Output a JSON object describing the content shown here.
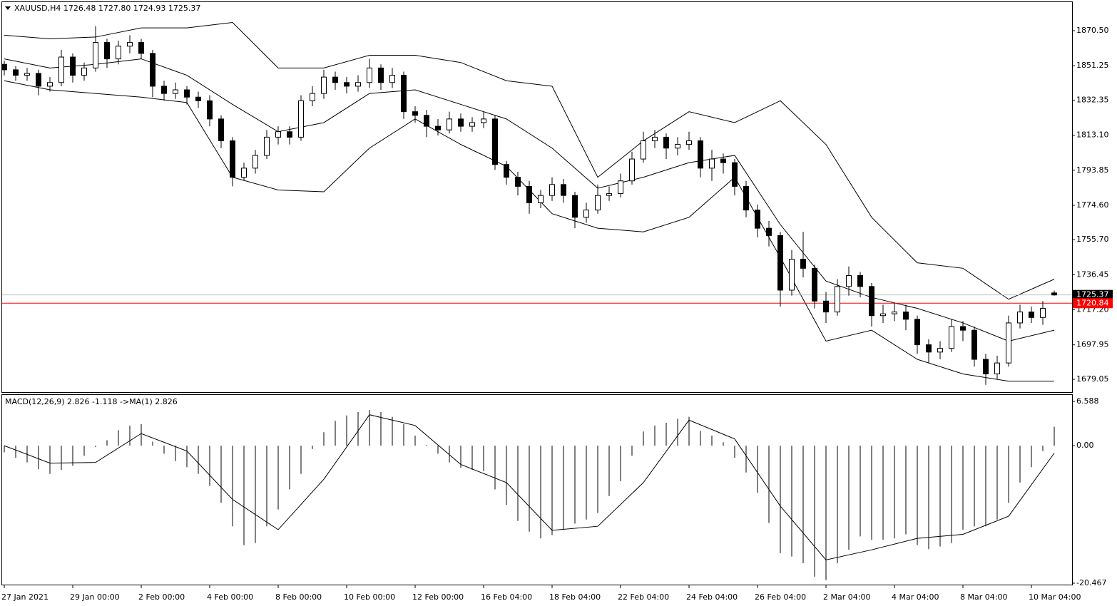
{
  "chart_data": [
    {
      "type": "candlestick",
      "title": "XAUUSD,H4  1726.48 1727.80 1724.93 1725.37",
      "categories": [
        "27 Jan 2021",
        null,
        null,
        null,
        null,
        null,
        "29 Jan 00:00",
        null,
        null,
        null,
        null,
        null,
        "2 Feb 00:00",
        null,
        null,
        null,
        null,
        null,
        "4 Feb 00:00",
        null,
        null,
        null,
        null,
        null,
        "8 Feb 00:00",
        null,
        null,
        null,
        null,
        null,
        "10 Feb 00:00",
        null,
        null,
        null,
        null,
        null,
        "12 Feb 00:00",
        null,
        null,
        null,
        null,
        null,
        "16 Feb 04:00",
        null,
        null,
        null,
        null,
        null,
        "18 Feb 04:00",
        null,
        null,
        null,
        null,
        null,
        "22 Feb 04:00",
        null,
        null,
        null,
        null,
        null,
        "24 Feb 04:00",
        null,
        null,
        null,
        null,
        null,
        "26 Feb 04:00",
        null,
        null,
        null,
        null,
        null,
        "2 Mar 04:00",
        null,
        null,
        null,
        null,
        null,
        "4 Mar 04:00",
        null,
        null,
        null,
        null,
        null,
        "8 Mar 04:00",
        null,
        null,
        null,
        null,
        null,
        "10 Mar 04:00",
        null,
        null
      ],
      "open": [
        1852,
        1849,
        1846,
        1847,
        1840,
        1842,
        1856,
        1846,
        1850,
        1864,
        1855,
        1862,
        1864,
        1858,
        1840,
        1836,
        1838,
        1834,
        1832,
        1822,
        1810,
        1790,
        1795,
        1802,
        1812,
        1815,
        1812,
        1832,
        1836,
        1845,
        1842,
        1840,
        1842,
        1850,
        1842,
        1846,
        1826,
        1824,
        1818,
        1816,
        1822,
        1818,
        1820,
        1822,
        1797,
        1790,
        1785,
        1776,
        1780,
        1786,
        1780,
        1768,
        1772,
        1780,
        1781,
        1788,
        1800,
        1810,
        1812,
        1806,
        1808,
        1810,
        1795,
        1800,
        1798,
        1785,
        1772,
        1762,
        1758,
        1728,
        1745,
        1740,
        1722,
        1716,
        1730,
        1736,
        1730,
        1714,
        1715,
        1716,
        1712,
        1698,
        1694,
        1696,
        1708,
        1706,
        1690,
        1682,
        1688,
        1710,
        1716,
        1713,
        1726.48
      ],
      "high": [
        1854,
        1851,
        1850,
        1849,
        1845,
        1860,
        1858,
        1853,
        1873,
        1866,
        1865,
        1868,
        1866,
        1860,
        1843,
        1842,
        1840,
        1837,
        1835,
        1824,
        1812,
        1798,
        1805,
        1816,
        1818,
        1818,
        1835,
        1840,
        1849,
        1848,
        1845,
        1846,
        1855,
        1852,
        1850,
        1848,
        1829,
        1827,
        1822,
        1826,
        1825,
        1823,
        1826,
        1824,
        1799,
        1793,
        1788,
        1783,
        1790,
        1789,
        1782,
        1776,
        1786,
        1785,
        1792,
        1804,
        1815,
        1816,
        1814,
        1812,
        1815,
        1812,
        1805,
        1803,
        1800,
        1788,
        1775,
        1766,
        1760,
        1750,
        1760,
        1742,
        1727,
        1734,
        1741,
        1738,
        1732,
        1720,
        1721,
        1720,
        1714,
        1701,
        1700,
        1712,
        1711,
        1708,
        1693,
        1692,
        1714,
        1720,
        1719,
        1722,
        1727.8
      ],
      "low": [
        1846,
        1843,
        1843,
        1835,
        1837,
        1840,
        1842,
        1843,
        1848,
        1850,
        1852,
        1858,
        1855,
        1834,
        1832,
        1833,
        1830,
        1828,
        1818,
        1806,
        1785,
        1788,
        1792,
        1800,
        1808,
        1808,
        1810,
        1829,
        1833,
        1838,
        1836,
        1837,
        1839,
        1838,
        1839,
        1822,
        1820,
        1812,
        1813,
        1814,
        1815,
        1815,
        1817,
        1794,
        1786,
        1780,
        1770,
        1773,
        1777,
        1776,
        1762,
        1765,
        1770,
        1777,
        1779,
        1786,
        1798,
        1806,
        1800,
        1802,
        1805,
        1790,
        1788,
        1792,
        1780,
        1768,
        1757,
        1752,
        1719,
        1725,
        1735,
        1718,
        1710,
        1714,
        1725,
        1724,
        1708,
        1710,
        1711,
        1706,
        1693,
        1688,
        1690,
        1694,
        1700,
        1686,
        1676,
        1679,
        1686,
        1707,
        1710,
        1709,
        1724.93
      ],
      "close": [
        1849,
        1846,
        1847,
        1840,
        1842,
        1856,
        1846,
        1850,
        1864,
        1855,
        1862,
        1864,
        1858,
        1840,
        1836,
        1838,
        1834,
        1832,
        1822,
        1810,
        1790,
        1795,
        1802,
        1812,
        1815,
        1812,
        1832,
        1836,
        1845,
        1842,
        1840,
        1842,
        1850,
        1842,
        1846,
        1826,
        1824,
        1818,
        1816,
        1822,
        1818,
        1820,
        1822,
        1797,
        1790,
        1785,
        1776,
        1780,
        1786,
        1780,
        1768,
        1772,
        1780,
        1781,
        1788,
        1800,
        1810,
        1812,
        1806,
        1808,
        1810,
        1795,
        1800,
        1798,
        1785,
        1772,
        1762,
        1758,
        1728,
        1745,
        1740,
        1722,
        1716,
        1730,
        1736,
        1730,
        1714,
        1715,
        1716,
        1712,
        1698,
        1694,
        1696,
        1708,
        1706,
        1690,
        1682,
        1688,
        1710,
        1716,
        1713,
        1718,
        1725.37
      ],
      "up_color": "#ffffff",
      "down_color": "#000000",
      "bands": {
        "x": [
          0,
          4,
          8,
          12,
          16,
          20,
          24,
          28,
          32,
          36,
          40,
          44,
          48,
          52,
          56,
          60,
          64,
          68,
          72,
          76,
          80,
          84,
          88,
          92
        ],
        "upper": [
          1868,
          1866,
          1867,
          1872,
          1872,
          1875,
          1850,
          1850,
          1857,
          1857,
          1853,
          1843,
          1840,
          1790,
          1810,
          1826,
          1820,
          1832,
          1808,
          1768,
          1743,
          1740,
          1723,
          1734
        ],
        "middle": [
          1855,
          1850,
          1852,
          1855,
          1846,
          1830,
          1815,
          1820,
          1836,
          1838,
          1830,
          1822,
          1806,
          1784,
          1790,
          1798,
          1802,
          1764,
          1733,
          1724,
          1718,
          1710,
          1700,
          1706
        ],
        "lower": [
          1843,
          1838,
          1836,
          1834,
          1831,
          1790,
          1783,
          1782,
          1806,
          1822,
          1808,
          1796,
          1770,
          1762,
          1760,
          1768,
          1790,
          1746,
          1700,
          1706,
          1690,
          1682,
          1678,
          1678
        ],
        "color": "#000000"
      },
      "price_lines": [
        {
          "value": 1725.37,
          "label": "1725.37",
          "color": "#c0c0c0"
        },
        {
          "value": 1720.84,
          "label": "1720.84",
          "color": "#ff0000"
        }
      ],
      "ylim": [
        1672.0,
        1886.55
      ],
      "yticks": [
        {
          "value": 1870.5,
          "label": "1870.50"
        },
        1851.25,
        1832.35,
        {
          "value": 1813.1,
          "label": "1813.10"
        },
        1793.85,
        {
          "value": 1774.6,
          "label": "1774.60"
        },
        {
          "value": 1755.7,
          "label": "1755.70"
        },
        1736.45,
        {
          "value": 1717.2,
          "label": "1717.20"
        },
        1697.95,
        1679.05
      ]
    },
    {
      "type": "macd",
      "title": "MACD(12,26,9) 2.826 -1.118 ->MA(1) 2.826",
      "histogram": [
        -1.0,
        -1.8,
        -2.5,
        -3.5,
        -4.2,
        -3.6,
        -3.0,
        -1.5,
        -0.2,
        0.8,
        2.3,
        3.0,
        3.2,
        0.6,
        -1.2,
        -2.3,
        -3.2,
        -4.2,
        -6.0,
        -8.5,
        -12.0,
        -14.8,
        -14.5,
        -12.0,
        -9.5,
        -6.5,
        -4.2,
        -0.5,
        2.0,
        3.7,
        4.5,
        5.0,
        5.3,
        5.0,
        4.3,
        3.2,
        1.5,
        0.1,
        -1.2,
        -2.5,
        -3.3,
        -3.6,
        -3.8,
        -6.5,
        -8.8,
        -11.2,
        -12.8,
        -13.8,
        -13.3,
        -12.5,
        -11.6,
        -11.0,
        -10.0,
        -7.5,
        -5.3,
        -1.5,
        2.1,
        3.0,
        3.4,
        4.0,
        4.3,
        2.2,
        1.5,
        0.5,
        -1.8,
        -4.0,
        -7.0,
        -11.5,
        -16.0,
        -16.5,
        -17.5,
        -19.5,
        -20.0,
        -17.5,
        -15.5,
        -13.5,
        -14.0,
        -14.0,
        -13.8,
        -13.2,
        -14.8,
        -15.4,
        -15.0,
        -14.5,
        -12.5,
        -12.0,
        -12.0,
        -11.0,
        -8.5,
        -5.5,
        -3.2,
        -0.8,
        2.826
      ],
      "signal": {
        "x": [
          0,
          4,
          8,
          12,
          16,
          20,
          24,
          28,
          32,
          36,
          40,
          44,
          48,
          52,
          56,
          60,
          64,
          68,
          72,
          76,
          80,
          84,
          88,
          92
        ],
        "values": [
          0.0,
          -2.6,
          -2.5,
          1.8,
          -0.8,
          -8.0,
          -12.5,
          -5.0,
          4.6,
          3.0,
          -2.8,
          -5.5,
          -12.6,
          -12.0,
          -5.5,
          3.8,
          1.0,
          -9.0,
          -17.0,
          -15.5,
          -13.8,
          -13.2,
          -10.5,
          -1.118
        ]
      },
      "color": "#000000",
      "ylim": [
        -20.68,
        7.65
      ],
      "yticks": [
        6.588,
        {
          "value": 0,
          "label": "0.00"
        },
        -20.467
      ]
    }
  ]
}
